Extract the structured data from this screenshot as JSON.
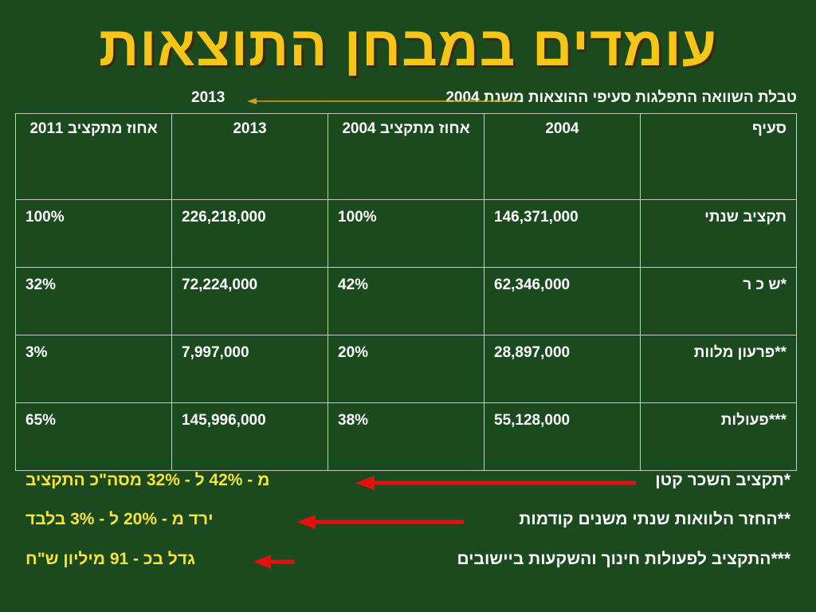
{
  "title": "עומדים במבחן התוצאות",
  "subtitle": {
    "text": "טבלת השוואה התפלגות סעיפי ההוצאות משנת 2004",
    "year_to": "2013"
  },
  "table": {
    "headers": [
      "סעיף",
      "2004",
      "אחוז  מתקציב 2004",
      "2013",
      "אחוז מתקציב 2011"
    ],
    "rows": [
      [
        "תקציב שנתי",
        "146,371,000",
        "100%",
        "226,218,000",
        "100%"
      ],
      [
        "*ש כ ר",
        "62,346,000",
        "42%",
        "72,224,000",
        "32%"
      ],
      [
        "**פרעון מלוות",
        "28,897,000",
        "20%",
        "7,997,000",
        "3%"
      ],
      [
        "***פעולות",
        "55,128,000",
        "38%",
        "145,996,000",
        "65%"
      ]
    ]
  },
  "notes": [
    {
      "label": "*תקציב השכר קטן",
      "detail": "מ - 42% ל - 32% מסה\"כ התקציב"
    },
    {
      "label": "**החזר הלוואות שנתי משנים קודמות",
      "detail": "ירד  מ - 20% ל - 3% בלבד"
    },
    {
      "label": "***התקציב לפעולות חינוך והשקעות ביישובים",
      "detail": "גדל בכ - 91 מיליון ש\"ח"
    }
  ],
  "colors": {
    "background": "#1a4a1e",
    "title": "#f5c517",
    "note_detail": "#f7e33a",
    "arrow_red": "#e41010",
    "subtitle_arrow": "#d4a020"
  }
}
